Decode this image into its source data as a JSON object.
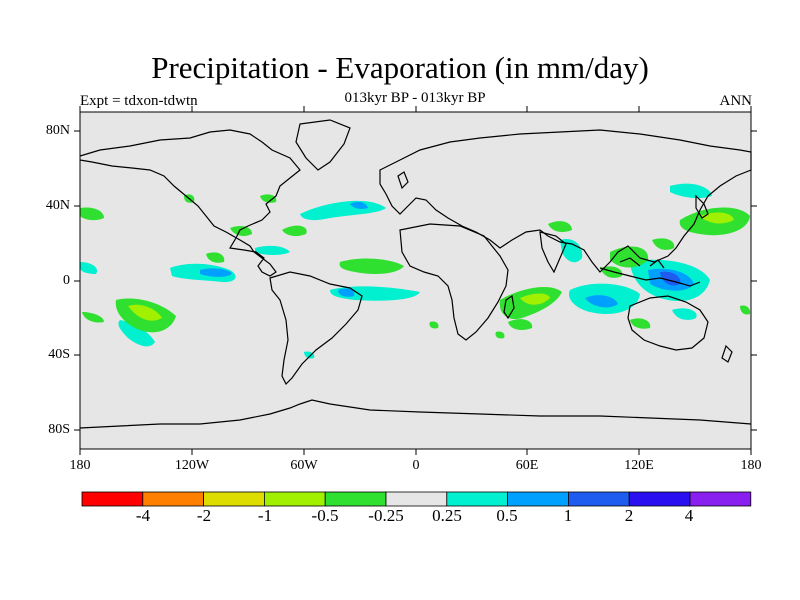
{
  "title": "Precipitation - Evaporation (in mm/day)",
  "subtitle": "013kyr BP - 013kyr BP",
  "left_label": "Expt = tdxon-tdwtn",
  "right_label": "ANN",
  "lat_labels": [
    "80N",
    "40N",
    "0",
    "40S",
    "80S"
  ],
  "lon_labels": [
    "180",
    "120W",
    "60W",
    "0",
    "60E",
    "120E",
    "180"
  ],
  "colorbar": {
    "colors": [
      "#ff0000",
      "#ff7f00",
      "#dddd00",
      "#a0f000",
      "#30e030",
      "#e6e6e6",
      "#00f0d0",
      "#00a0ff",
      "#1e5cf0",
      "#2a10f0",
      "#8a20f0"
    ],
    "labels": [
      "-4",
      "-2",
      "-1",
      "-0.5",
      "-0.25",
      "0.25",
      "0.5",
      "1",
      "2",
      "4"
    ]
  },
  "map_colors": {
    "background": "#e6e6e6",
    "pos_weak": "#00f0d0",
    "pos_mid": "#00a0ff",
    "pos_strong": "#1e5cf0",
    "neg_weak": "#30e030",
    "neg_mid": "#a0f000",
    "coast": "#000000"
  }
}
